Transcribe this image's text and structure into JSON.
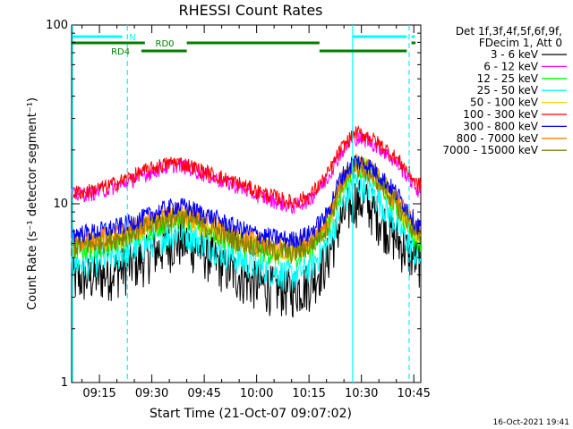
{
  "chart_data": {
    "type": "line",
    "title": "RHESSI Count Rates",
    "xlabel": "Start Time (21-Oct-07 09:07:02)",
    "ylabel": "Count Rate (s⁻¹ detector segment⁻¹)",
    "y_scale": "log",
    "ylim": [
      1,
      100
    ],
    "xlim": [
      "09:07:02",
      "10:47:00"
    ],
    "x_ticks": [
      "09:15",
      "09:30",
      "09:45",
      "10:00",
      "10:15",
      "10:30",
      "10:45"
    ],
    "y_ticks": [
      "1",
      "10",
      "100"
    ],
    "grid": false,
    "legend_position": "right",
    "legend_header": [
      "Det 1f,3f,4f,5f,6f,9f,",
      "FDecim 1, Att 0"
    ],
    "timestamp": "16-Oct-2021 19:41",
    "sample_times": [
      "09:07",
      "09:12",
      "09:17",
      "09:22",
      "09:27",
      "09:32",
      "09:37",
      "09:40",
      "09:45",
      "09:50",
      "09:55",
      "10:00",
      "10:05",
      "10:10",
      "10:15",
      "10:20",
      "10:24",
      "10:28",
      "10:32",
      "10:36",
      "10:40",
      "10:43",
      "10:46"
    ],
    "series": [
      {
        "name": "3 - 6 keV",
        "color": "#000000",
        "values": [
          3.8,
          3.9,
          4.1,
          4.4,
          4.9,
          5.6,
          6.2,
          6.1,
          5.4,
          4.6,
          4.0,
          3.6,
          3.4,
          3.3,
          3.6,
          4.8,
          8.0,
          10.8,
          10.0,
          8.0,
          6.4,
          5.5,
          4.9
        ]
      },
      {
        "name": "6 - 12 keV",
        "color": "#ff00ff",
        "values": [
          11.2,
          11.4,
          12.0,
          13.0,
          14.3,
          15.6,
          16.5,
          16.0,
          14.6,
          13.4,
          12.4,
          11.2,
          10.4,
          9.6,
          10.5,
          13.6,
          19.2,
          23.5,
          22.5,
          20.0,
          17.0,
          14.5,
          12.0
        ]
      },
      {
        "name": "12 - 25 keV",
        "color": "#00ff00",
        "values": [
          5.6,
          5.7,
          6.0,
          6.4,
          7.0,
          7.8,
          8.4,
          8.2,
          7.4,
          6.6,
          6.0,
          5.6,
          5.3,
          5.1,
          5.6,
          7.2,
          12.0,
          16.5,
          15.5,
          12.5,
          9.8,
          8.0,
          6.4
        ]
      },
      {
        "name": "25 - 50 keV",
        "color": "#00ffff",
        "values": [
          4.6,
          4.7,
          5.0,
          5.3,
          5.8,
          6.4,
          7.0,
          6.8,
          6.1,
          5.4,
          4.9,
          4.5,
          4.2,
          4.0,
          4.4,
          5.8,
          9.5,
          13.2,
          12.4,
          10.0,
          7.8,
          6.4,
          5.0
        ]
      },
      {
        "name": "50 - 100 keV",
        "color": "#ffd000",
        "values": [
          5.9,
          6.0,
          6.3,
          6.7,
          7.3,
          8.0,
          8.6,
          8.4,
          7.6,
          6.9,
          6.3,
          5.9,
          5.6,
          5.4,
          5.9,
          7.5,
          12.5,
          17.0,
          16.0,
          13.0,
          10.2,
          8.3,
          6.7
        ]
      },
      {
        "name": "100 - 300 keV",
        "color": "#ff0000",
        "values": [
          11.5,
          11.8,
          12.5,
          13.6,
          15.0,
          16.3,
          17.2,
          16.6,
          15.2,
          14.0,
          13.0,
          11.8,
          11.0,
          10.2,
          11.0,
          14.2,
          20.0,
          25.0,
          24.0,
          21.0,
          18.0,
          15.5,
          12.8
        ]
      },
      {
        "name": "300 - 800 keV",
        "color": "#0000ff",
        "values": [
          6.8,
          6.9,
          7.2,
          7.6,
          8.3,
          9.1,
          9.8,
          9.6,
          8.8,
          8.0,
          7.3,
          6.8,
          6.5,
          6.3,
          6.8,
          8.6,
          14.0,
          17.5,
          16.5,
          14.0,
          11.5,
          9.5,
          7.6
        ]
      },
      {
        "name": "800 - 7000 keV",
        "color": "#ff8000",
        "values": [
          6.2,
          6.3,
          6.6,
          7.0,
          7.6,
          8.3,
          8.9,
          8.7,
          8.0,
          7.2,
          6.6,
          6.2,
          5.9,
          5.7,
          6.2,
          7.9,
          13.0,
          16.8,
          15.8,
          13.2,
          10.6,
          8.7,
          7.0
        ]
      },
      {
        "name": "7000 - 15000 keV",
        "color": "#808000",
        "values": [
          5.8,
          5.9,
          6.2,
          6.6,
          7.2,
          7.9,
          8.5,
          8.3,
          7.6,
          6.8,
          6.2,
          5.8,
          5.5,
          5.3,
          5.8,
          7.4,
          12.3,
          16.2,
          15.2,
          12.6,
          10.0,
          8.2,
          6.6
        ]
      }
    ],
    "annotations": {
      "attenuator_label": "N",
      "decimation_labels": [
        "RD0",
        "RD4"
      ],
      "vertical_lines": {
        "solid": [
          "10:27:30"
        ],
        "dashed": [
          "09:23:00",
          "10:43:40"
        ]
      }
    },
    "colors": {
      "decimation_bar": "#008000",
      "attenuator_bar": "#00ffff",
      "marker_line": "#00ffff"
    }
  }
}
